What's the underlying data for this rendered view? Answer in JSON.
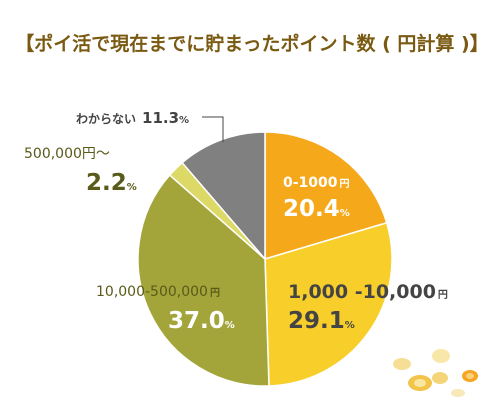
{
  "title": "【ポイ活で現在までに貯まったポイント数 ( 円計算 )】",
  "colors": {
    "title": "#7a5a12",
    "label_dark": "#5a5a1a",
    "label_white": "#ffffff",
    "label_gray": "#555555"
  },
  "chart_data": {
    "type": "pie",
    "title": "【ポイ活で現在までに貯まったポイント数 ( 円計算 )】",
    "slices": [
      {
        "category": "0-1000",
        "unit": "円",
        "value": 20.4,
        "pct_label": "20.4",
        "pct_sign": "%",
        "color": "#f6a81b"
      },
      {
        "category": "1,000 -10,000",
        "unit": "円",
        "value": 29.1,
        "pct_label": "29.1",
        "pct_sign": "%",
        "color": "#f8cf2a"
      },
      {
        "category": "10,000-500,000",
        "unit": "円",
        "value": 37.0,
        "pct_label": "37.0",
        "pct_sign": "%",
        "color": "#a3a53a"
      },
      {
        "category": "500,000円～",
        "unit": "",
        "value": 2.2,
        "pct_label": "2.2",
        "pct_sign": "%",
        "color": "#dcd966"
      },
      {
        "category": "わからない",
        "unit": "",
        "value": 11.3,
        "pct_label": "11.3",
        "pct_sign": "%",
        "color": "#808080"
      }
    ]
  }
}
